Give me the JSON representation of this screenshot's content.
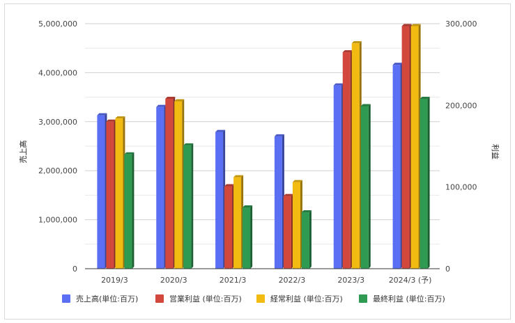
{
  "chart_data": {
    "type": "bar",
    "categories": [
      "2019/3",
      "2020/3",
      "2021/3",
      "2022/3",
      "2023/3",
      "2024/3 (予)"
    ],
    "y_left": {
      "label": "売上高",
      "range": [
        0,
        5000000
      ],
      "ticks": [
        "0",
        "1,000,000",
        "2,000,000",
        "3,000,000",
        "4,000,000",
        "5,000,000"
      ]
    },
    "y_right": {
      "label": "利益",
      "range": [
        0,
        300000
      ],
      "ticks": [
        "0",
        "100,000",
        "200,000",
        "300,000"
      ]
    },
    "series": [
      {
        "name": "売上高(単位:百万)",
        "axis": "left",
        "color": "#5b6ff5",
        "values": [
          3130000,
          3300000,
          2790000,
          2700000,
          3740000,
          4160000
        ]
      },
      {
        "name": "営業利益 (単位:百万)",
        "axis": "right",
        "color": "#d3483c",
        "values": [
          180000,
          208000,
          101000,
          89000,
          265000,
          297000
        ]
      },
      {
        "name": "経常利益 (単位:百万)",
        "axis": "right",
        "color": "#f2bb12",
        "values": [
          184000,
          205000,
          112000,
          106000,
          276000,
          297000
        ]
      },
      {
        "name": "最終利益 (単位:百万)",
        "axis": "right",
        "color": "#2e9a52",
        "values": [
          140000,
          151000,
          75000,
          69000,
          199000,
          208000
        ]
      }
    ],
    "grid": true,
    "legend_position": "bottom"
  }
}
